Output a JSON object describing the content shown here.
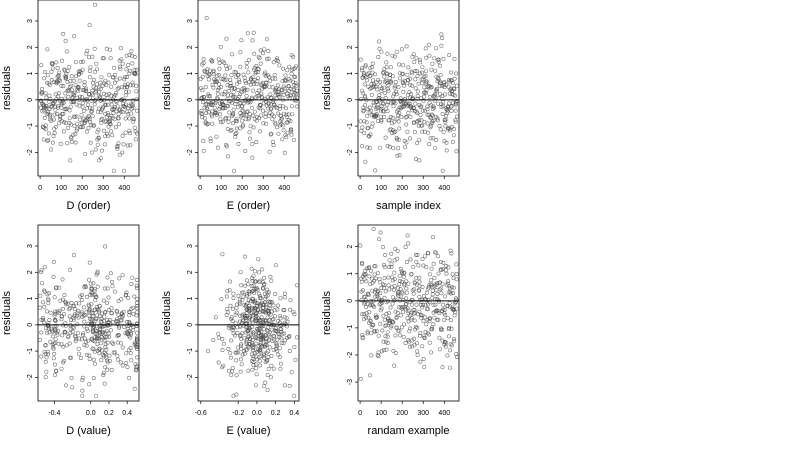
{
  "chart_data": [
    {
      "type": "scatter",
      "xlabel": "D (order)",
      "ylabel": "residuals",
      "xticks": [
        "0",
        "100",
        "200",
        "300",
        "400"
      ],
      "yticks": [
        "-2",
        "-1",
        "0",
        "1",
        "2",
        "3"
      ],
      "xlim": [
        -10,
        470
      ],
      "ylim": [
        -2.9,
        3.8
      ],
      "ref_line_y": 0,
      "n_points": 460
    },
    {
      "type": "scatter",
      "xlabel": "E (order)",
      "ylabel": "residuals",
      "xticks": [
        "0",
        "100",
        "200",
        "300",
        "400"
      ],
      "yticks": [
        "-2",
        "-1",
        "0",
        "1",
        "2",
        "3"
      ],
      "xlim": [
        -10,
        470
      ],
      "ylim": [
        -2.9,
        3.8
      ],
      "ref_line_y": 0,
      "n_points": 460
    },
    {
      "type": "scatter",
      "xlabel": "sample index",
      "ylabel": "residuals",
      "xticks": [
        "0",
        "100",
        "200",
        "300",
        "400"
      ],
      "yticks": [
        "-2",
        "-1",
        "0",
        "1",
        "2",
        "3"
      ],
      "xlim": [
        -10,
        470
      ],
      "ylim": [
        -2.9,
        3.8
      ],
      "ref_line_y": 0,
      "n_points": 460
    },
    {
      "type": "scatter",
      "xlabel": "D (value)",
      "ylabel": "residuals",
      "xticks": [
        "-0.4",
        "0.0",
        "0.2",
        "0.4"
      ],
      "yticks": [
        "-2",
        "-1",
        "0",
        "1",
        "2",
        "3"
      ],
      "xlim": [
        -0.58,
        0.53
      ],
      "ylim": [
        -2.9,
        3.8
      ],
      "ref_line_y": 0,
      "n_points": 460
    },
    {
      "type": "scatter",
      "xlabel": "E (value)",
      "ylabel": "residuals",
      "xticks": [
        "-0.6",
        "-0.2",
        "0.0",
        "0.2",
        "0.4"
      ],
      "yticks": [
        "-2",
        "-1",
        "0",
        "1",
        "2",
        "3"
      ],
      "xlim": [
        -0.63,
        0.45
      ],
      "ylim": [
        -2.9,
        3.8
      ],
      "ref_line_y": 0,
      "n_points": 460
    },
    {
      "type": "scatter",
      "xlabel": "randam example",
      "ylabel": "residuals",
      "xticks": [
        "0",
        "100",
        "200",
        "300",
        "400"
      ],
      "yticks": [
        "-3",
        "-2",
        "-1",
        "0",
        "1",
        "2"
      ],
      "xlim": [
        -10,
        470
      ],
      "ylim": [
        -3.7,
        2.8
      ],
      "ref_line_y": 0,
      "n_points": 460
    }
  ]
}
